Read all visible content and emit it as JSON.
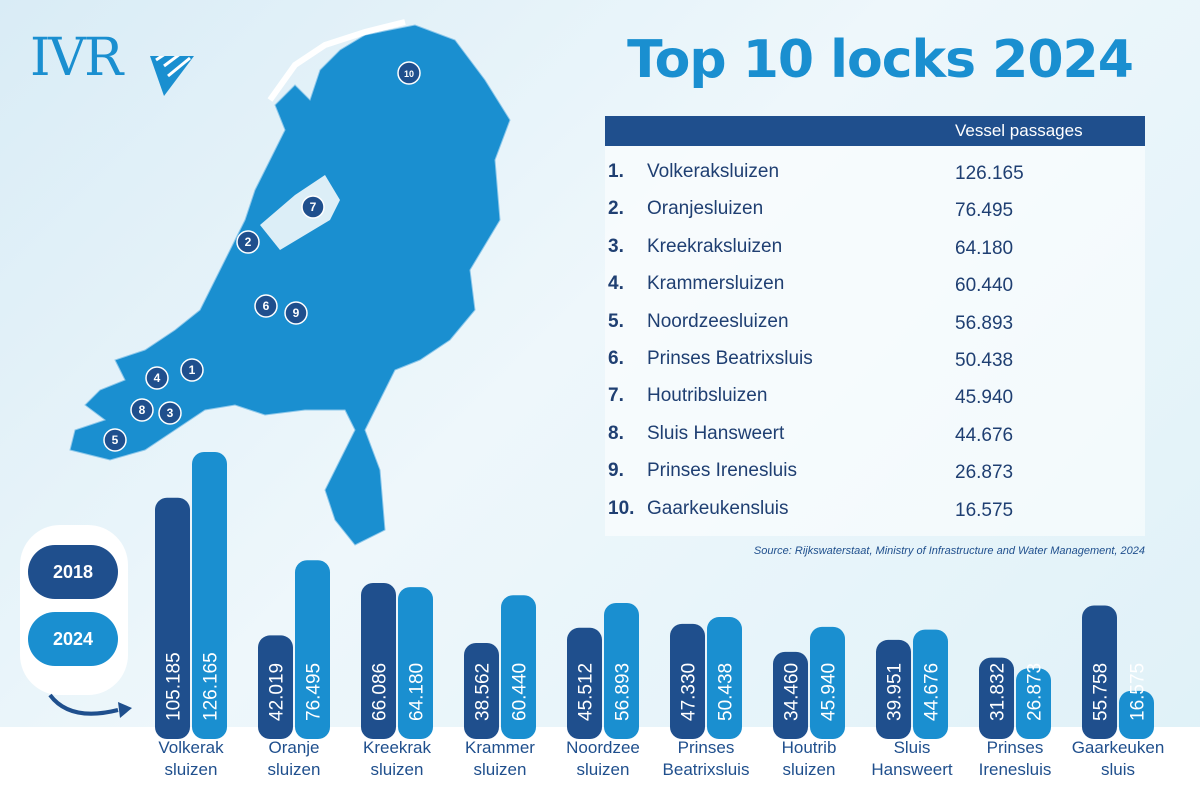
{
  "brand": {
    "logo": "IVR",
    "primary": "#1a8fd0",
    "dark": "#1f4f8d"
  },
  "title": "Top 10 locks 2024",
  "table": {
    "header": "Vessel passages",
    "rows": [
      {
        "rank": "1.",
        "name": "Volkeraksluizen",
        "value": "126.165"
      },
      {
        "rank": "2.",
        "name": "Oranjesluizen",
        "value": "76.495"
      },
      {
        "rank": "3.",
        "name": "Kreekraksluizen",
        "value": "64.180"
      },
      {
        "rank": "4.",
        "name": "Krammersluizen",
        "value": "60.440"
      },
      {
        "rank": "5.",
        "name": "Noordzeesluizen",
        "value": "56.893"
      },
      {
        "rank": "6.",
        "name": "Prinses Beatrixsluis",
        "value": "50.438"
      },
      {
        "rank": "7.",
        "name": "Houtribsluizen",
        "value": "45.940"
      },
      {
        "rank": "8.",
        "name": "Sluis Hansweert",
        "value": "44.676"
      },
      {
        "rank": "9.",
        "name": "Prinses Irenesluis",
        "value": "26.873"
      },
      {
        "rank": "10.",
        "name": "Gaarkeukensluis",
        "value": "16.575"
      }
    ]
  },
  "source": "Source: Rijkswaterstaat, Ministry of Infrastructure and Water Management, 2024",
  "map_markers": [
    "1",
    "2",
    "3",
    "4",
    "5",
    "6",
    "7",
    "8",
    "9",
    "10"
  ],
  "chart_data": {
    "type": "bar",
    "title": "",
    "categories": [
      [
        "Volkerak",
        "sluizen"
      ],
      [
        "Oranje",
        "sluizen"
      ],
      [
        "Kreekrak",
        "sluizen"
      ],
      [
        "Krammer",
        "sluizen"
      ],
      [
        "Noordzee",
        "sluizen"
      ],
      [
        "Prinses",
        "Beatrixsluis"
      ],
      [
        "Houtrib",
        "sluizen"
      ],
      [
        "Sluis",
        "Hansweert"
      ],
      [
        "Prinses",
        "Irenesluis"
      ],
      [
        "Gaarkeuken",
        "sluis"
      ]
    ],
    "series": [
      {
        "name": "2018",
        "color": "#1f4f8d",
        "values": [
          105185,
          42019,
          66086,
          38562,
          45512,
          47330,
          34460,
          39951,
          31832,
          55758
        ],
        "labels": [
          "105.185",
          "42.019",
          "66.086",
          "38.562",
          "45.512",
          "47.330",
          "34.460",
          "39.951",
          "31.832",
          "55.758"
        ]
      },
      {
        "name": "2024",
        "color": "#1a8fd0",
        "values": [
          126165,
          76495,
          64180,
          60440,
          56893,
          50438,
          45940,
          44676,
          26873,
          16575
        ],
        "labels": [
          "126.165",
          "76.495",
          "64.180",
          "60.440",
          "56.893",
          "50.438",
          "45.940",
          "44.676",
          "26.873",
          "16.575"
        ]
      }
    ],
    "ylim": [
      0,
      126165
    ]
  }
}
